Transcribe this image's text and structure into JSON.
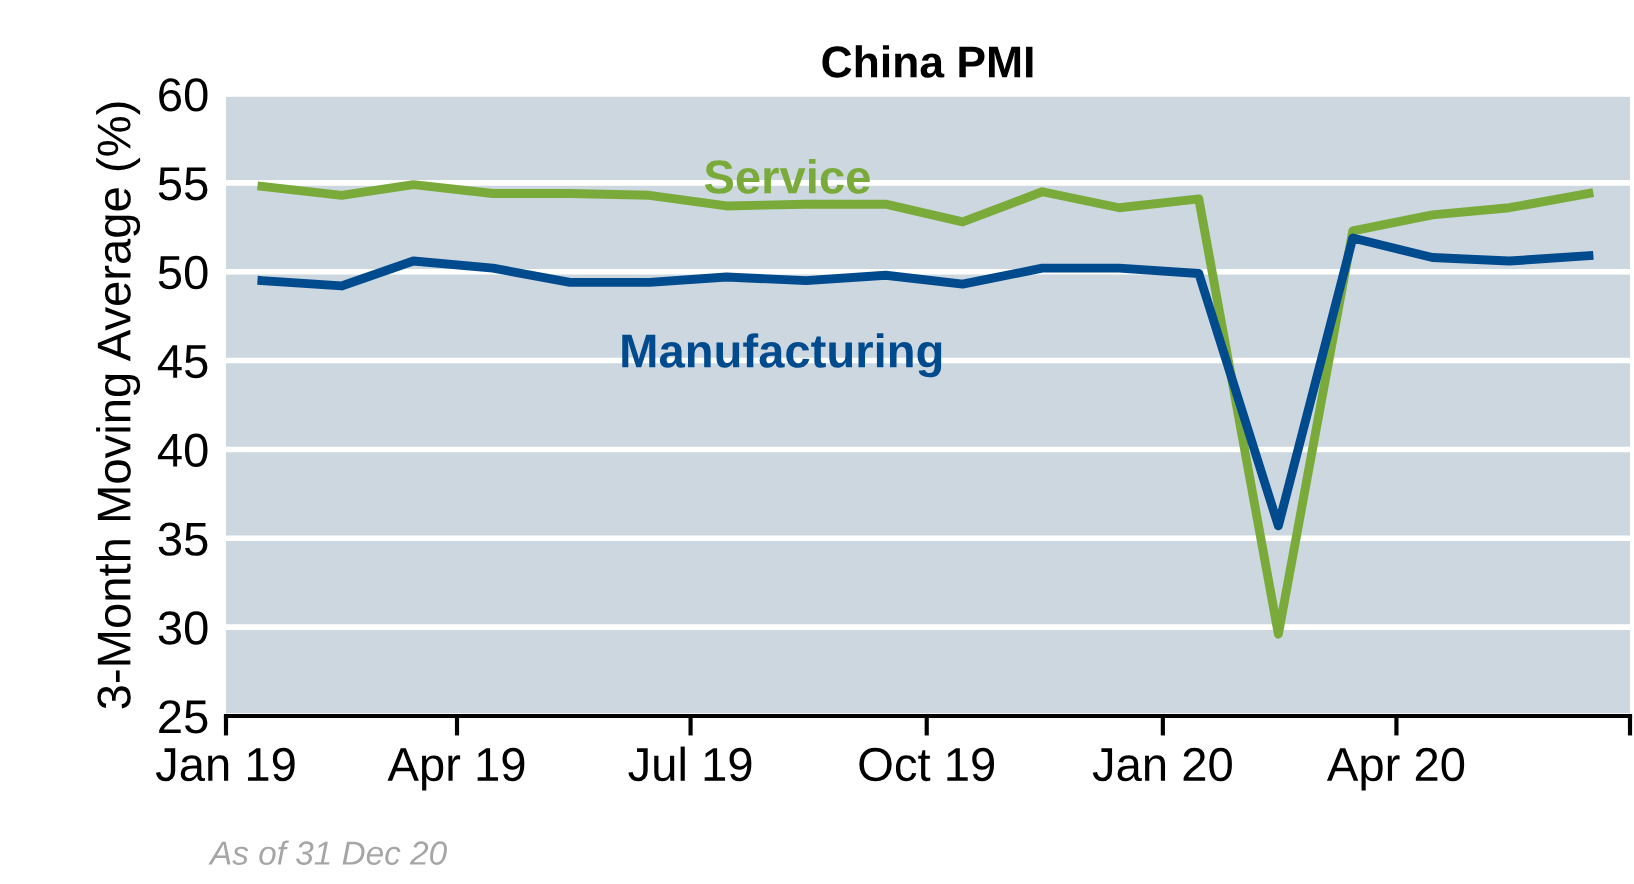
{
  "chart_data": {
    "type": "line",
    "title": "China PMI",
    "ylabel": "3-Month Moving Average (%)",
    "x": [
      "2019-01-15",
      "2019-02-15",
      "2019-03-15",
      "2019-04-15",
      "2019-05-15",
      "2019-06-15",
      "2019-07-15",
      "2019-08-15",
      "2019-09-15",
      "2019-10-15",
      "2019-11-15",
      "2019-12-15",
      "2020-01-15",
      "2020-02-15",
      "2020-03-15",
      "2020-04-15",
      "2020-05-15",
      "2020-06-15"
    ],
    "series": [
      {
        "name": "Service",
        "color": "#7aab3a",
        "values": [
          54.8,
          54.3,
          54.9,
          54.4,
          54.4,
          54.3,
          53.7,
          53.8,
          53.8,
          52.8,
          54.5,
          53.6,
          54.1,
          29.6,
          52.3,
          53.2,
          53.6,
          54.4
        ]
      },
      {
        "name": "Manufacturing",
        "color": "#004b8d",
        "values": [
          49.5,
          49.2,
          50.6,
          50.2,
          49.4,
          49.4,
          49.7,
          49.5,
          49.8,
          49.3,
          50.2,
          50.2,
          49.9,
          35.7,
          51.9,
          50.8,
          50.6,
          50.9
        ]
      }
    ],
    "xlim": [
      "2019-01-01",
      "2020-07-01"
    ],
    "xticks": [
      {
        "value": "2019-01-01",
        "label": "Jan 19"
      },
      {
        "value": "2019-04-01",
        "label": "Apr 19"
      },
      {
        "value": "2019-07-01",
        "label": "Jul 19"
      },
      {
        "value": "2019-10-01",
        "label": "Oct 19"
      },
      {
        "value": "2020-01-01",
        "label": "Jan 20"
      },
      {
        "value": "2020-04-01",
        "label": "Apr 20"
      },
      {
        "value": "2020-07-01",
        "label": null
      }
    ],
    "ylim": [
      25,
      60
    ],
    "yticks": [
      25,
      30,
      35,
      40,
      45,
      50,
      55,
      60
    ],
    "grid": "y",
    "legend": false,
    "marker": "none",
    "line_style": "solid",
    "annotations": [
      "As of 31 Dec 20"
    ]
  }
}
